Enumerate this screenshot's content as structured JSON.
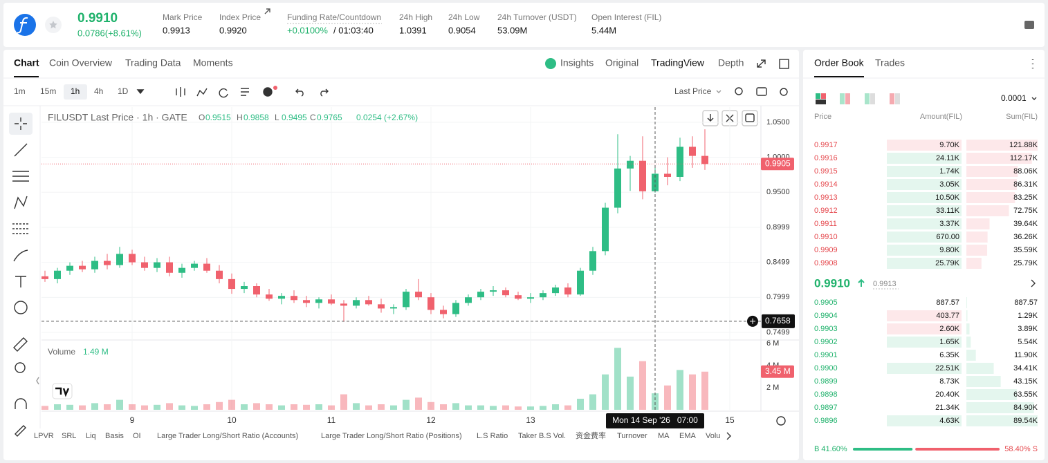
{
  "header": {
    "symbol_price": "0.9910",
    "change": "0.0786(+8.61%)",
    "stats": [
      {
        "label": "Mark Price",
        "value": "0.9913"
      },
      {
        "label": "Index Price",
        "value": "0.9920"
      },
      {
        "label": "Funding Rate/Countdown",
        "value": "+0.0100%",
        "extra": "/ 01:03:40"
      },
      {
        "label": "24h High",
        "value": "1.0391"
      },
      {
        "label": "24h Low",
        "value": "0.9054"
      },
      {
        "label": "24h Turnover (USDT)",
        "value": "53.09M"
      },
      {
        "label": "Open Interest (FIL)",
        "value": "5.44M"
      }
    ]
  },
  "chart_tabs": [
    "Chart",
    "Coin Overview",
    "Trading Data",
    "Moments"
  ],
  "view_tabs": [
    "Insights",
    "Original",
    "TradingView",
    "Depth"
  ],
  "intervals": [
    "1m",
    "15m",
    "1h",
    "4h",
    "1D"
  ],
  "price_source": "Last Price",
  "chart_data": {
    "type": "candlestick",
    "title": "FILUSDT Last Price · 1h · GATE",
    "ohlc_keys": [
      "O",
      "H",
      "L",
      "C"
    ],
    "change": "0.0254 (+2.67%)",
    "up_color": "#2ebd85",
    "down_color": "#f0616d",
    "candles": [
      [
        0.83,
        0.838,
        0.822,
        0.826
      ],
      [
        0.826,
        0.842,
        0.82,
        0.838
      ],
      [
        0.838,
        0.85,
        0.832,
        0.845
      ],
      [
        0.845,
        0.852,
        0.836,
        0.84
      ],
      [
        0.84,
        0.858,
        0.835,
        0.852
      ],
      [
        0.852,
        0.862,
        0.84,
        0.846
      ],
      [
        0.846,
        0.872,
        0.842,
        0.862
      ],
      [
        0.862,
        0.868,
        0.846,
        0.85
      ],
      [
        0.85,
        0.858,
        0.838,
        0.842
      ],
      [
        0.842,
        0.856,
        0.836,
        0.85
      ],
      [
        0.85,
        0.858,
        0.83,
        0.835
      ],
      [
        0.835,
        0.848,
        0.828,
        0.842
      ],
      [
        0.842,
        0.852,
        0.838,
        0.848
      ],
      [
        0.848,
        0.856,
        0.835,
        0.838
      ],
      [
        0.838,
        0.846,
        0.82,
        0.826
      ],
      [
        0.826,
        0.834,
        0.805,
        0.812
      ],
      [
        0.812,
        0.822,
        0.806,
        0.816
      ],
      [
        0.816,
        0.82,
        0.8,
        0.804
      ],
      [
        0.804,
        0.812,
        0.795,
        0.798
      ],
      [
        0.798,
        0.806,
        0.79,
        0.802
      ],
      [
        0.802,
        0.81,
        0.792,
        0.796
      ],
      [
        0.796,
        0.802,
        0.786,
        0.792
      ],
      [
        0.792,
        0.8,
        0.784,
        0.797
      ],
      [
        0.797,
        0.804,
        0.789,
        0.791
      ],
      [
        0.791,
        0.796,
        0.765,
        0.788
      ],
      [
        0.788,
        0.8,
        0.784,
        0.796
      ],
      [
        0.796,
        0.802,
        0.788,
        0.79
      ],
      [
        0.79,
        0.798,
        0.778,
        0.784
      ],
      [
        0.784,
        0.79,
        0.776,
        0.786
      ],
      [
        0.786,
        0.812,
        0.782,
        0.808
      ],
      [
        0.808,
        0.826,
        0.796,
        0.8
      ],
      [
        0.8,
        0.806,
        0.776,
        0.782
      ],
      [
        0.782,
        0.788,
        0.77,
        0.776
      ],
      [
        0.776,
        0.796,
        0.772,
        0.792
      ],
      [
        0.792,
        0.804,
        0.788,
        0.8
      ],
      [
        0.8,
        0.812,
        0.796,
        0.808
      ],
      [
        0.808,
        0.816,
        0.802,
        0.81
      ],
      [
        0.81,
        0.814,
        0.8,
        0.803
      ],
      [
        0.803,
        0.808,
        0.796,
        0.798
      ],
      [
        0.798,
        0.806,
        0.792,
        0.8
      ],
      [
        0.8,
        0.81,
        0.796,
        0.806
      ],
      [
        0.806,
        0.818,
        0.802,
        0.814
      ],
      [
        0.814,
        0.82,
        0.8,
        0.804
      ],
      [
        0.804,
        0.842,
        0.802,
        0.838
      ],
      [
        0.838,
        0.872,
        0.832,
        0.866
      ],
      [
        0.866,
        0.935,
        0.86,
        0.928
      ],
      [
        0.928,
        1.033,
        0.92,
        0.984
      ],
      [
        0.984,
        1.002,
        0.952,
        0.995
      ],
      [
        0.995,
        1.03,
        0.94,
        0.9515
      ],
      [
        0.9515,
        0.9858,
        0.9495,
        0.9765
      ],
      [
        0.9765,
        1.0,
        0.96,
        0.972
      ],
      [
        0.972,
        1.028,
        0.966,
        1.015
      ],
      [
        1.015,
        1.03,
        0.985,
        1.002
      ],
      [
        1.002,
        1.04,
        0.982,
        0.9905
      ]
    ],
    "ylim": [
      0.739,
      1.0717
    ],
    "yticks": [
      {
        "value": 1.05,
        "label": "1.0500"
      },
      {
        "value": 1.0,
        "label": "1.0000"
      },
      {
        "value": 0.95,
        "label": "0.9500"
      },
      {
        "value": 0.8999,
        "label": "0.8999"
      },
      {
        "value": 0.8499,
        "label": "0.8499"
      },
      {
        "value": 0.7999,
        "label": "0.7999"
      },
      {
        "value": 0.7499,
        "label": "0.7499"
      }
    ],
    "xticks": [
      {
        "value": 7,
        "label": "9"
      },
      {
        "value": 15,
        "label": "10"
      },
      {
        "value": 23,
        "label": "11"
      },
      {
        "value": 31,
        "label": "12"
      },
      {
        "value": 39,
        "label": "13"
      },
      {
        "value": 55,
        "label": "15"
      }
    ],
    "grid": true,
    "crosshair": {
      "index": 49,
      "price": 0.7658,
      "time": "Mon 14 Sep '26   07:00"
    },
    "volume": {
      "title": "Volume",
      "values": [
        0.35,
        0.5,
        0.45,
        0.4,
        0.6,
        0.5,
        0.9,
        0.5,
        0.4,
        0.45,
        0.6,
        0.4,
        0.35,
        0.5,
        0.7,
        0.9,
        0.5,
        0.6,
        0.5,
        0.4,
        0.5,
        0.45,
        0.5,
        0.4,
        1.4,
        0.6,
        0.4,
        0.5,
        0.4,
        0.9,
        1.1,
        0.7,
        0.5,
        0.6,
        0.4,
        0.4,
        0.35,
        0.4,
        0.3,
        0.3,
        0.35,
        0.5,
        0.4,
        1.0,
        1.4,
        3.2,
        5.6,
        3.0,
        4.4,
        1.49,
        2.2,
        3.6,
        3.2,
        3.45
      ],
      "value_labels": [
        null,
        null,
        null,
        null,
        null,
        null,
        null,
        null,
        null,
        null,
        null,
        null,
        null,
        null,
        null,
        null,
        null,
        null,
        null,
        null,
        null,
        null,
        null,
        null,
        null,
        null,
        null,
        null,
        null,
        null,
        null,
        null,
        null,
        null,
        null,
        null,
        null,
        null,
        null,
        null,
        null,
        null,
        null,
        null,
        null,
        null,
        null,
        null,
        null,
        "1.49 M",
        null,
        null,
        null,
        "3.45 M"
      ],
      "ylim": [
        0,
        6
      ],
      "yticks": [
        {
          "value": 6,
          "label": "6 M"
        },
        {
          "value": 4,
          "label": "4 M"
        },
        {
          "value": 2,
          "label": "2 M"
        }
      ]
    }
  },
  "indicator_tabs": [
    "LPVR",
    "SRL",
    "Liq",
    "Basis",
    "OI",
    "Large Trader Long/Short Ratio (Accounts)",
    "Large Trader Long/Short Ratio (Positions)",
    "L.S Ratio",
    "Taker B.S Vol.",
    "资金费率",
    "Turnover",
    "MA",
    "EMA",
    "Volu"
  ],
  "order_book": {
    "tabs": [
      "Order Book",
      "Trades"
    ],
    "precision": "0.0001",
    "columns": [
      "Price",
      "Amount(FIL)",
      "Sum(FIL)"
    ],
    "asks": [
      {
        "price": "0.9917",
        "amount": {
          "value": 9700,
          "label": "9.70K"
        },
        "sum": {
          "value": 121880,
          "label": "121.88K"
        },
        "flash": "sell"
      },
      {
        "price": "0.9916",
        "amount": {
          "value": 24110,
          "label": "24.11K"
        },
        "sum": {
          "value": 112170,
          "label": "112.17K"
        },
        "flash": "buy"
      },
      {
        "price": "0.9915",
        "amount": {
          "value": 1740,
          "label": "1.74K"
        },
        "sum": {
          "value": 88060,
          "label": "88.06K"
        },
        "flash": "buy"
      },
      {
        "price": "0.9914",
        "amount": {
          "value": 3050,
          "label": "3.05K"
        },
        "sum": {
          "value": 86310,
          "label": "86.31K"
        },
        "flash": "buy"
      },
      {
        "price": "0.9913",
        "amount": {
          "value": 10500,
          "label": "10.50K"
        },
        "sum": {
          "value": 83250,
          "label": "83.25K"
        },
        "flash": "buy"
      },
      {
        "price": "0.9912",
        "amount": {
          "value": 33110,
          "label": "33.11K"
        },
        "sum": {
          "value": 72750,
          "label": "72.75K"
        },
        "flash": "buy"
      },
      {
        "price": "0.9911",
        "amount": {
          "value": 3370,
          "label": "3.37K"
        },
        "sum": {
          "value": 39640,
          "label": "39.64K"
        },
        "flash": "buy"
      },
      {
        "price": "0.9910",
        "amount": {
          "value": 670,
          "label": "670.00"
        },
        "sum": {
          "value": 36260,
          "label": "36.26K"
        },
        "flash": "buy"
      },
      {
        "price": "0.9909",
        "amount": {
          "value": 9800,
          "label": "9.80K"
        },
        "sum": {
          "value": 35590,
          "label": "35.59K"
        },
        "flash": "buy"
      },
      {
        "price": "0.9908",
        "amount": {
          "value": 25790,
          "label": "25.79K"
        },
        "sum": {
          "value": 25790,
          "label": "25.79K"
        },
        "flash": "buy"
      }
    ],
    "last": "0.9910",
    "mark": "0.9913",
    "bids": [
      {
        "price": "0.9905",
        "amount": 887.57,
        "sum": 887.57
      },
      {
        "price": "0.9904",
        "amount": 403.77,
        "sum": {
          "value": 1290,
          "label": "1.29K"
        },
        "flash": "sell"
      },
      {
        "price": "0.9903",
        "amount": {
          "value": 2600,
          "label": "2.60K"
        },
        "sum": {
          "value": 3890,
          "label": "3.89K"
        },
        "flash": "sell"
      },
      {
        "price": "0.9902",
        "amount": {
          "value": 1650,
          "label": "1.65K"
        },
        "sum": {
          "value": 5540,
          "label": "5.54K"
        },
        "flash": "buy"
      },
      {
        "price": "0.9901",
        "amount": {
          "value": 6350,
          "label": "6.35K"
        },
        "sum": {
          "value": 11900,
          "label": "11.90K"
        }
      },
      {
        "price": "0.9900",
        "amount": {
          "value": 22510,
          "label": "22.51K"
        },
        "sum": {
          "value": 34410,
          "label": "34.41K"
        },
        "flash": "buy"
      },
      {
        "price": "0.9899",
        "amount": {
          "value": 8730,
          "label": "8.73K"
        },
        "sum": {
          "value": 43150,
          "label": "43.15K"
        }
      },
      {
        "price": "0.9898",
        "amount": {
          "value": 20400,
          "label": "20.40K"
        },
        "sum": {
          "value": 63550,
          "label": "63.55K"
        }
      },
      {
        "price": "0.9897",
        "amount": {
          "value": 21340,
          "label": "21.34K"
        },
        "sum": {
          "value": 84900,
          "label": "84.90K"
        }
      },
      {
        "price": "0.9896",
        "amount": {
          "value": 4630,
          "label": "4.63K"
        },
        "sum": {
          "value": 89540,
          "label": "89.54K"
        },
        "flash": "buy"
      }
    ],
    "buy_ratio": {
      "value": 41.6,
      "label": "B 41.60%"
    },
    "sell_ratio": {
      "value": 58.4,
      "label": "58.40% S"
    }
  }
}
